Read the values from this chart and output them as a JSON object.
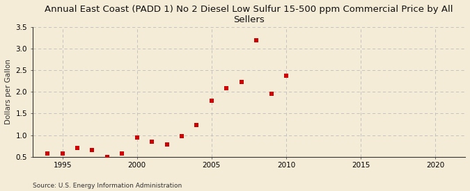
{
  "title": "Annual East Coast (PADD 1) No 2 Diesel Low Sulfur 15-500 ppm Commercial Price by All\nSellers",
  "ylabel": "Dollars per Gallon",
  "source": "Source: U.S. Energy Information Administration",
  "background_color": "#f5ecd7",
  "plot_bg_color": "#f5ecd7",
  "years": [
    1994,
    1995,
    1996,
    1997,
    1998,
    1999,
    2000,
    2001,
    2002,
    2003,
    2004,
    2005,
    2006,
    2007,
    2008,
    2009,
    2010
  ],
  "values": [
    0.58,
    0.58,
    0.71,
    0.65,
    0.5,
    0.58,
    0.95,
    0.84,
    0.78,
    0.97,
    1.24,
    1.79,
    2.09,
    2.23,
    3.2,
    1.95,
    2.37
  ],
  "marker_color": "#cc0000",
  "marker_size": 4,
  "xlim": [
    1993,
    2022
  ],
  "ylim": [
    0.5,
    3.5
  ],
  "xticks": [
    1995,
    2000,
    2005,
    2010,
    2015,
    2020
  ],
  "yticks": [
    0.5,
    1.0,
    1.5,
    2.0,
    2.5,
    3.0,
    3.5
  ],
  "title_fontsize": 9.5,
  "label_fontsize": 7.5,
  "tick_fontsize": 7.5,
  "source_fontsize": 6.5,
  "grid_color": "#bbbbbb",
  "spine_color": "#333333"
}
